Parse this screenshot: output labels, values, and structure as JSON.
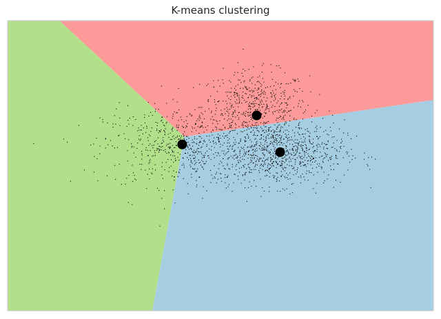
{
  "chart_data": {
    "type": "scatter",
    "title": "K-means clustering",
    "xlabel": "",
    "ylabel": "",
    "xlim": [
      -5.0,
      5.0
    ],
    "ylim": [
      -4.0,
      3.5
    ],
    "grid": false,
    "legend": "none",
    "colors": {
      "region_red": "#fb9a99",
      "region_green": "#b2df8a",
      "region_blue": "#a6cee3",
      "points": "#000000",
      "centroids": "#000000",
      "frame": "#cccccc"
    },
    "regions": [
      {
        "name": "red",
        "polygon": [
          [
            -3.78,
            3.5
          ],
          [
            5.0,
            3.5
          ],
          [
            5.0,
            1.45
          ],
          [
            -0.85,
            0.5
          ]
        ]
      },
      {
        "name": "green",
        "polygon": [
          [
            -5.0,
            3.5
          ],
          [
            -3.78,
            3.5
          ],
          [
            -0.85,
            0.5
          ],
          [
            -1.6,
            -4.0
          ],
          [
            -5.0,
            -4.0
          ]
        ]
      },
      {
        "name": "blue",
        "polygon": [
          [
            -0.85,
            0.5
          ],
          [
            5.0,
            1.45
          ],
          [
            5.0,
            -4.0
          ],
          [
            -1.6,
            -4.0
          ]
        ]
      }
    ],
    "centroids": [
      {
        "x": 0.85,
        "y": 1.05
      },
      {
        "x": -0.9,
        "y": 0.3
      },
      {
        "x": 1.4,
        "y": 0.1
      }
    ],
    "clusters": [
      {
        "center": [
          0.8,
          1.3
        ],
        "spread": [
          1.05,
          0.75
        ],
        "n": 520
      },
      {
        "center": [
          -0.9,
          0.25
        ],
        "spread": [
          1.55,
          0.85
        ],
        "n": 620
      },
      {
        "center": [
          1.4,
          0.1
        ],
        "spread": [
          1.25,
          0.7
        ],
        "n": 860
      }
    ]
  }
}
